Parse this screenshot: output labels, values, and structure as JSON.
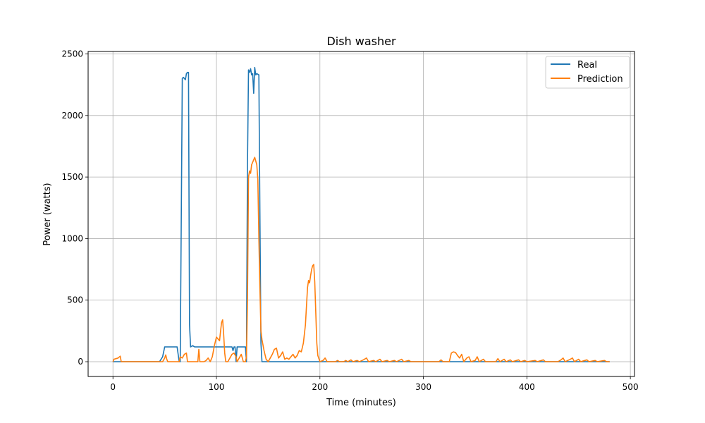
{
  "chart_data": {
    "type": "line",
    "title": "Dish washer",
    "xlabel": "Time (minutes)",
    "ylabel": "Power (watts)",
    "xlim": [
      -24,
      504
    ],
    "ylim": [
      -120,
      2520
    ],
    "xticks": [
      0,
      100,
      200,
      300,
      400,
      500
    ],
    "yticks": [
      0,
      500,
      1000,
      1500,
      2000,
      2500
    ],
    "grid": true,
    "legend_position": "top-right",
    "series": [
      {
        "name": "Real",
        "color": "#1f77b4",
        "points": [
          [
            0,
            0
          ],
          [
            45,
            0
          ],
          [
            48,
            40
          ],
          [
            50,
            120
          ],
          [
            62,
            120
          ],
          [
            64,
            0
          ],
          [
            65,
            0
          ],
          [
            67,
            2300
          ],
          [
            68,
            2310
          ],
          [
            70,
            2290
          ],
          [
            71,
            2340
          ],
          [
            72,
            2350
          ],
          [
            73,
            2350
          ],
          [
            74,
            300
          ],
          [
            75,
            120
          ],
          [
            77,
            130
          ],
          [
            79,
            120
          ],
          [
            115,
            120
          ],
          [
            116,
            90
          ],
          [
            117,
            120
          ],
          [
            118,
            120
          ],
          [
            119,
            0
          ],
          [
            120,
            120
          ],
          [
            128,
            120
          ],
          [
            129,
            0
          ],
          [
            130,
            1600
          ],
          [
            131,
            2370
          ],
          [
            132,
            2350
          ],
          [
            133,
            2380
          ],
          [
            134,
            2330
          ],
          [
            135,
            2340
          ],
          [
            136,
            2180
          ],
          [
            137,
            2390
          ],
          [
            138,
            2330
          ],
          [
            139,
            2340
          ],
          [
            141,
            2330
          ],
          [
            142,
            1200
          ],
          [
            143,
            150
          ],
          [
            144,
            0
          ],
          [
            480,
            0
          ]
        ]
      },
      {
        "name": "Prediction",
        "color": "#ff7f0e",
        "points": [
          [
            0,
            0
          ],
          [
            1,
            20
          ],
          [
            3,
            25
          ],
          [
            5,
            30
          ],
          [
            7,
            45
          ],
          [
            8,
            0
          ],
          [
            48,
            0
          ],
          [
            50,
            30
          ],
          [
            51,
            55
          ],
          [
            52,
            20
          ],
          [
            53,
            0
          ],
          [
            64,
            0
          ],
          [
            65,
            40
          ],
          [
            67,
            30
          ],
          [
            69,
            60
          ],
          [
            71,
            70
          ],
          [
            72,
            0
          ],
          [
            82,
            0
          ],
          [
            83,
            100
          ],
          [
            84,
            0
          ],
          [
            88,
            0
          ],
          [
            90,
            10
          ],
          [
            92,
            30
          ],
          [
            94,
            0
          ],
          [
            96,
            40
          ],
          [
            98,
            130
          ],
          [
            100,
            200
          ],
          [
            102,
            180
          ],
          [
            103,
            170
          ],
          [
            104,
            250
          ],
          [
            105,
            320
          ],
          [
            106,
            340
          ],
          [
            107,
            220
          ],
          [
            108,
            70
          ],
          [
            109,
            0
          ],
          [
            111,
            0
          ],
          [
            113,
            30
          ],
          [
            115,
            60
          ],
          [
            117,
            70
          ],
          [
            119,
            40
          ],
          [
            120,
            0
          ],
          [
            122,
            30
          ],
          [
            124,
            60
          ],
          [
            126,
            0
          ],
          [
            128,
            0
          ],
          [
            129,
            40
          ],
          [
            130,
            500
          ],
          [
            131,
            1500
          ],
          [
            132,
            1550
          ],
          [
            133,
            1530
          ],
          [
            134,
            1600
          ],
          [
            135,
            1620
          ],
          [
            136,
            1640
          ],
          [
            137,
            1660
          ],
          [
            139,
            1600
          ],
          [
            140,
            1480
          ],
          [
            141,
            1000
          ],
          [
            142,
            600
          ],
          [
            143,
            250
          ],
          [
            144,
            180
          ],
          [
            146,
            90
          ],
          [
            148,
            20
          ],
          [
            150,
            0
          ],
          [
            152,
            30
          ],
          [
            154,
            60
          ],
          [
            156,
            100
          ],
          [
            158,
            110
          ],
          [
            160,
            30
          ],
          [
            162,
            50
          ],
          [
            164,
            80
          ],
          [
            166,
            20
          ],
          [
            168,
            30
          ],
          [
            170,
            20
          ],
          [
            172,
            40
          ],
          [
            174,
            60
          ],
          [
            176,
            30
          ],
          [
            178,
            50
          ],
          [
            180,
            90
          ],
          [
            182,
            80
          ],
          [
            184,
            150
          ],
          [
            186,
            300
          ],
          [
            188,
            600
          ],
          [
            189,
            660
          ],
          [
            190,
            640
          ],
          [
            191,
            700
          ],
          [
            192,
            750
          ],
          [
            193,
            780
          ],
          [
            194,
            790
          ],
          [
            195,
            650
          ],
          [
            196,
            400
          ],
          [
            197,
            150
          ],
          [
            198,
            50
          ],
          [
            200,
            0
          ],
          [
            203,
            10
          ],
          [
            205,
            30
          ],
          [
            207,
            0
          ],
          [
            215,
            0
          ],
          [
            217,
            10
          ],
          [
            219,
            0
          ],
          [
            223,
            0
          ],
          [
            225,
            10
          ],
          [
            227,
            0
          ],
          [
            230,
            15
          ],
          [
            232,
            0
          ],
          [
            236,
            10
          ],
          [
            238,
            0
          ],
          [
            242,
            15
          ],
          [
            245,
            30
          ],
          [
            247,
            0
          ],
          [
            252,
            10
          ],
          [
            254,
            0
          ],
          [
            258,
            20
          ],
          [
            260,
            0
          ],
          [
            265,
            10
          ],
          [
            267,
            0
          ],
          [
            272,
            10
          ],
          [
            274,
            0
          ],
          [
            279,
            20
          ],
          [
            281,
            0
          ],
          [
            286,
            10
          ],
          [
            288,
            0
          ],
          [
            293,
            0
          ],
          [
            300,
            0
          ],
          [
            315,
            0
          ],
          [
            317,
            15
          ],
          [
            319,
            0
          ],
          [
            325,
            0
          ],
          [
            327,
            70
          ],
          [
            329,
            80
          ],
          [
            331,
            75
          ],
          [
            333,
            50
          ],
          [
            335,
            30
          ],
          [
            337,
            60
          ],
          [
            339,
            0
          ],
          [
            342,
            30
          ],
          [
            344,
            40
          ],
          [
            346,
            0
          ],
          [
            350,
            10
          ],
          [
            352,
            40
          ],
          [
            354,
            0
          ],
          [
            358,
            20
          ],
          [
            360,
            0
          ],
          [
            370,
            0
          ],
          [
            372,
            25
          ],
          [
            374,
            0
          ],
          [
            378,
            20
          ],
          [
            380,
            0
          ],
          [
            384,
            15
          ],
          [
            386,
            0
          ],
          [
            392,
            15
          ],
          [
            394,
            0
          ],
          [
            398,
            10
          ],
          [
            400,
            0
          ],
          [
            408,
            10
          ],
          [
            410,
            0
          ],
          [
            416,
            15
          ],
          [
            418,
            0
          ],
          [
            430,
            0
          ],
          [
            433,
            15
          ],
          [
            435,
            30
          ],
          [
            437,
            0
          ],
          [
            442,
            20
          ],
          [
            444,
            30
          ],
          [
            446,
            0
          ],
          [
            450,
            20
          ],
          [
            452,
            0
          ],
          [
            458,
            15
          ],
          [
            460,
            0
          ],
          [
            466,
            10
          ],
          [
            468,
            0
          ],
          [
            475,
            10
          ],
          [
            477,
            0
          ],
          [
            480,
            0
          ]
        ]
      }
    ]
  }
}
